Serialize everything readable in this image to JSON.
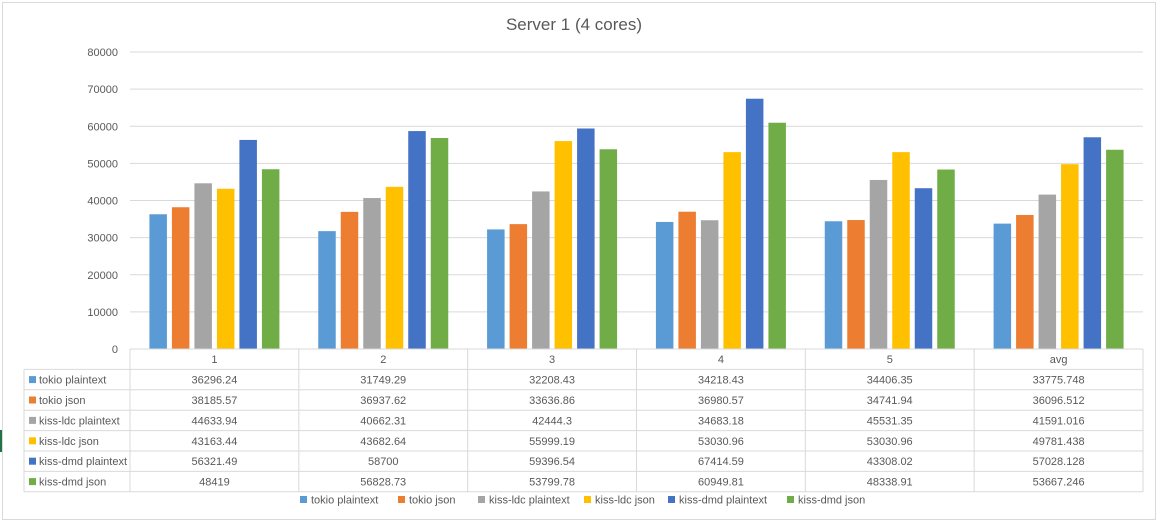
{
  "chart_data": {
    "type": "bar",
    "title": "Server 1 (4 cores)",
    "categories": [
      "1",
      "2",
      "3",
      "4",
      "5",
      "avg"
    ],
    "ylim": [
      0,
      80000
    ],
    "yticks": [
      "0",
      "10000",
      "20000",
      "30000",
      "40000",
      "50000",
      "60000",
      "70000",
      "80000"
    ],
    "grid": true,
    "legend_position": "bottom",
    "data_table": true,
    "series": [
      {
        "name": "tokio plaintext",
        "color": "#5b9bd5",
        "values": [
          36296.24,
          31749.29,
          32208.43,
          34218.43,
          34406.35,
          33775.748
        ],
        "labels": [
          "36296.24",
          "31749.29",
          "32208.43",
          "34218.43",
          "34406.35",
          "33775.748"
        ]
      },
      {
        "name": "tokio json",
        "color": "#ed7d31",
        "values": [
          38185.57,
          36937.62,
          33636.86,
          36980.57,
          34741.94,
          36096.512
        ],
        "labels": [
          "38185.57",
          "36937.62",
          "33636.86",
          "36980.57",
          "34741.94",
          "36096.512"
        ]
      },
      {
        "name": "kiss-ldc plaintext",
        "color": "#a5a5a5",
        "values": [
          44633.94,
          40662.31,
          42444.3,
          34683.18,
          45531.35,
          41591.016
        ],
        "labels": [
          "44633.94",
          "40662.31",
          "42444.3",
          "34683.18",
          "45531.35",
          "41591.016"
        ]
      },
      {
        "name": "kiss-ldc json",
        "color": "#ffc000",
        "values": [
          43163.44,
          43682.64,
          55999.19,
          53030.96,
          53030.96,
          49781.438
        ],
        "labels": [
          "43163.44",
          "43682.64",
          "55999.19",
          "53030.96",
          "53030.96",
          "49781.438"
        ]
      },
      {
        "name": "kiss-dmd plaintext",
        "color": "#4472c4",
        "values": [
          56321.49,
          58700,
          59396.54,
          67414.59,
          43308.02,
          57028.128
        ],
        "labels": [
          "56321.49",
          "58700",
          "59396.54",
          "67414.59",
          "43308.02",
          "57028.128"
        ]
      },
      {
        "name": "kiss-dmd json",
        "color": "#70ad47",
        "values": [
          48419,
          56828.73,
          53799.78,
          60949.81,
          48338.91,
          53667.246
        ],
        "labels": [
          "48419",
          "56828.73",
          "53799.78",
          "60949.81",
          "48338.91",
          "53667.246"
        ]
      }
    ]
  }
}
